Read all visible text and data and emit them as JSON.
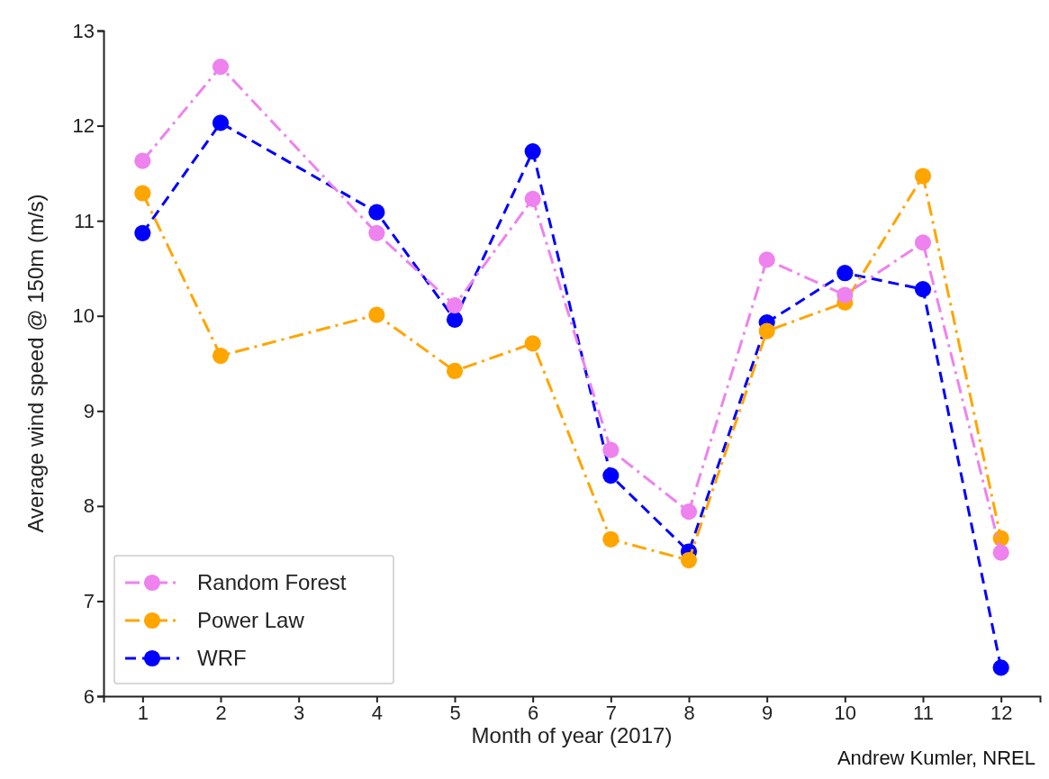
{
  "chart_data": {
    "type": "line",
    "xlabel": "Month of year (2017)",
    "ylabel": "Average wind speed @ 150m (m/s)",
    "annotations": [
      "Andrew Kumler, NREL"
    ],
    "xlim": [
      0.5,
      12.5
    ],
    "xticks": [
      1,
      2,
      3,
      4,
      5,
      6,
      7,
      8,
      9,
      10,
      11,
      12
    ],
    "ylim": [
      6,
      13
    ],
    "yticks": [
      6,
      7,
      8,
      9,
      10,
      11,
      12,
      13
    ],
    "grid": false,
    "legend": "bottom left",
    "marker": "circle",
    "series": [
      {
        "name": "Random Forest",
        "color": "#ee82ee",
        "line_style": "dashdot",
        "x": [
          1,
          2,
          4,
          5,
          6,
          7,
          8,
          9,
          10,
          11,
          12
        ],
        "values": [
          11.63,
          12.62,
          10.87,
          10.11,
          11.23,
          8.59,
          7.94,
          10.59,
          10.22,
          10.77,
          7.51
        ]
      },
      {
        "name": "Power Law",
        "color": "#ffa500",
        "line_style": "dashdot",
        "x": [
          1,
          2,
          4,
          5,
          6,
          7,
          8,
          9,
          10,
          11,
          12
        ],
        "values": [
          11.29,
          9.58,
          10.01,
          9.42,
          9.71,
          7.65,
          7.43,
          9.84,
          10.14,
          11.47,
          7.66
        ]
      },
      {
        "name": "WRF",
        "color": "#0000ff",
        "line_style": "dashed",
        "x": [
          1,
          2,
          4,
          5,
          6,
          7,
          8,
          9,
          10,
          11,
          12
        ],
        "values": [
          10.87,
          12.03,
          11.09,
          9.96,
          11.73,
          8.32,
          7.52,
          9.93,
          10.45,
          10.28,
          6.3
        ]
      }
    ]
  }
}
